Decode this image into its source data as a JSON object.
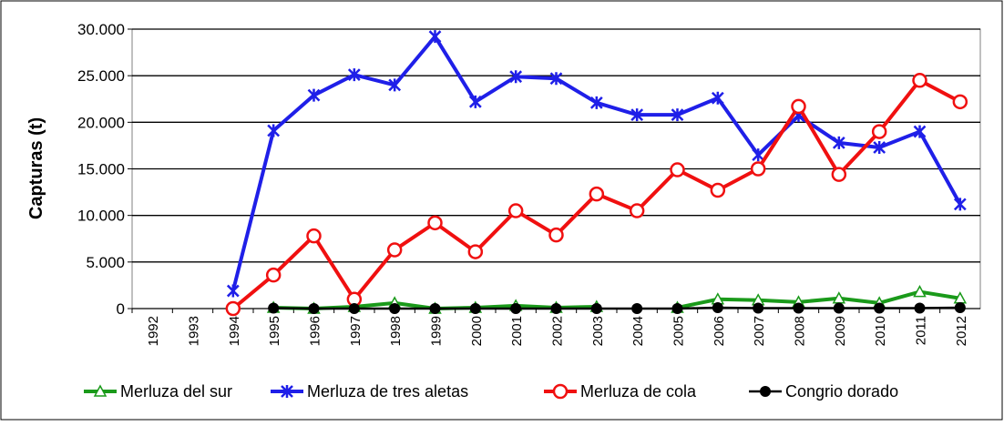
{
  "chart_data": {
    "type": "line",
    "y_label": "Capturas (t)",
    "categories": [
      "1992",
      "1993",
      "1994",
      "1995",
      "1996",
      "1997",
      "1998",
      "1999",
      "2000",
      "2001",
      "2002",
      "2003",
      "2004",
      "2005",
      "2006",
      "2007",
      "2008",
      "2009",
      "2010",
      "2011",
      "2012"
    ],
    "ylim": [
      0,
      30000
    ],
    "yticks": [
      0,
      {
        "value": 5000,
        "label": "5.000"
      },
      {
        "value": 10000,
        "label": "10.000"
      },
      {
        "value": 15000,
        "label": "15.000"
      },
      {
        "value": 20000,
        "label": "20.000"
      },
      {
        "value": 25000,
        "label": "25.000"
      },
      {
        "value": 30000,
        "label": "30.000"
      }
    ],
    "grid": true,
    "legend": "bottom",
    "series": [
      {
        "name": "Merluza del sur",
        "color": "#1a9a1a",
        "marker": "triangle",
        "values": [
          null,
          null,
          null,
          100,
          0,
          200,
          600,
          0,
          100,
          300,
          100,
          200,
          null,
          100,
          1000,
          900,
          700,
          1100,
          600,
          1800,
          1100
        ]
      },
      {
        "name": "Merluza de tres aletas",
        "color": "#1f1fe8",
        "marker": "star",
        "values": [
          null,
          null,
          1900,
          19100,
          22900,
          25100,
          24000,
          29200,
          22200,
          24900,
          24700,
          22100,
          20800,
          20800,
          22600,
          16500,
          20700,
          17800,
          17300,
          19000,
          11200
        ]
      },
      {
        "name": "Merluza de cola",
        "color": "#f01010",
        "marker": "circle",
        "values": [
          null,
          null,
          0,
          3600,
          7800,
          1000,
          6300,
          9200,
          6100,
          10500,
          7900,
          12300,
          10500,
          14900,
          12700,
          15000,
          21700,
          14400,
          19000,
          24500,
          22200
        ]
      },
      {
        "name": "Congrio dorado",
        "color": "#000000",
        "marker": "dot",
        "values": [
          null,
          null,
          null,
          50,
          0,
          0,
          0,
          0,
          0,
          0,
          0,
          0,
          0,
          0,
          100,
          50,
          50,
          50,
          50,
          50,
          100
        ]
      }
    ]
  }
}
